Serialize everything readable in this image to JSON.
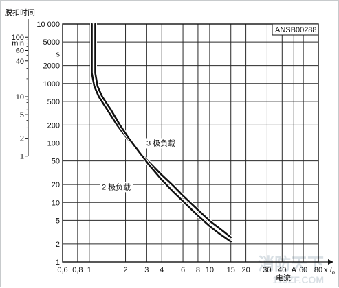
{
  "chart_data": {
    "type": "line",
    "title": "",
    "ylabel": "脱扣时间",
    "xlabel": "电流",
    "x_unit_suffix": "x",
    "x_unit_symbol": "I",
    "x_unit_subscript": "n",
    "x_scale": "log",
    "y_scale": "log",
    "xlim": [
      0.6,
      80
    ],
    "ylim": [
      1,
      10000
    ],
    "grid": true,
    "legend": "none",
    "code_label": "ANSB00288",
    "y_units": {
      "seconds": "s",
      "minutes": "min"
    },
    "x_ticks": [
      "0,6",
      "0,8",
      "1",
      "2",
      "3",
      "4",
      "6",
      "8",
      "10",
      "15",
      "20",
      "30",
      "40",
      "A",
      "60",
      "80"
    ],
    "x_tick_values": [
      0.6,
      0.8,
      1,
      2,
      3,
      4,
      6,
      8,
      10,
      15,
      20,
      30,
      40,
      50,
      60,
      80
    ],
    "y_ticks_seconds": [
      "1",
      "2",
      "5",
      "10",
      "20",
      "50",
      "100",
      "200",
      "500",
      "1000",
      "2000",
      "5000",
      "10 000"
    ],
    "y_tick_seconds_values": [
      1,
      2,
      5,
      10,
      20,
      50,
      100,
      200,
      500,
      1000,
      2000,
      5000,
      10000
    ],
    "y_ticks_minutes": [
      "1",
      "2",
      "5",
      "10",
      "40",
      "60",
      "100"
    ],
    "y_tick_minutes_values": [
      1,
      2,
      5,
      10,
      40,
      60,
      100
    ],
    "series": [
      {
        "name": "3 极负载",
        "color": "#111111",
        "x": [
          1.05,
          1.05,
          1.05,
          1.1,
          1.2,
          1.4,
          1.7,
          2.0,
          2.5,
          3.0,
          4.0,
          5.0,
          6.0,
          8.0,
          10.0,
          12.0,
          15.0
        ],
        "y": [
          10000,
          5000,
          1500,
          900,
          600,
          370,
          200,
          130,
          78,
          52,
          29,
          19,
          13,
          7.5,
          4.9,
          3.7,
          2.6
        ]
      },
      {
        "name": "2 极负载",
        "color": "#111111",
        "x": [
          1.12,
          1.12,
          1.12,
          1.17,
          1.28,
          1.5,
          1.8,
          2.1,
          2.6,
          3.1,
          4.0,
          5.0,
          6.0,
          8.0,
          10.0,
          12.0,
          15.0
        ],
        "y": [
          10000,
          5000,
          1500,
          900,
          600,
          370,
          200,
          125,
          70,
          44,
          24,
          15,
          10.5,
          6.0,
          4.0,
          3.0,
          2.2
        ]
      }
    ],
    "annotations": [
      "3 极负载",
      "2 极负载"
    ]
  },
  "watermark": {
    "line1": "消防天下",
    "line2": "119ZF.COM"
  }
}
